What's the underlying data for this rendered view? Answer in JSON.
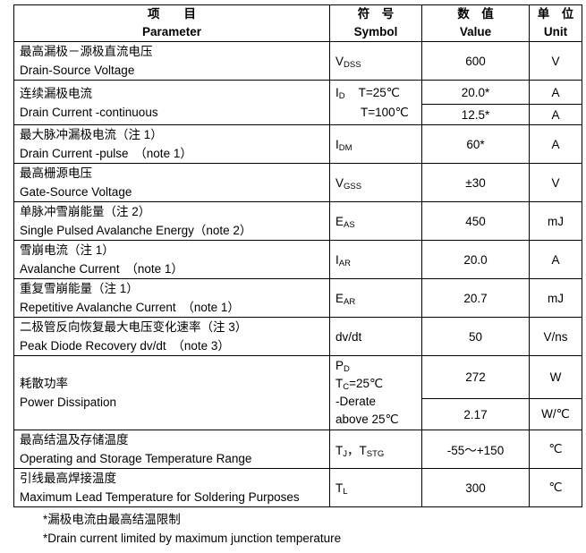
{
  "header": {
    "param_cn": "项　　目",
    "param_en": "Parameter",
    "symbol_cn": "符　号",
    "symbol_en": "Symbol",
    "value_cn": "数　值",
    "value_en": "Value",
    "unit_cn": "单　位",
    "unit_en": "Unit"
  },
  "rows": [
    {
      "cn": "最高漏极－源极直流电压",
      "en": "Drain-Source Voltage",
      "sym": "V",
      "sub": "DSS",
      "value": "600",
      "unit": "V"
    },
    {
      "cn": "连续漏极电流",
      "en": "Drain Current -continuous",
      "sym": "I",
      "sub": "D",
      "cond1": "T=25℃",
      "cond2": "T=100℃",
      "value1": "20.0*",
      "value2": "12.5*",
      "unit1": "A",
      "unit2": "A"
    },
    {
      "cn": "最大脉冲漏极电流（注 1）",
      "en": "Drain Current -pulse　（note 1）",
      "sym": "I",
      "sub": "DM",
      "value": "60*",
      "unit": "A"
    },
    {
      "cn": "最高栅源电压",
      "en": "Gate-Source Voltage",
      "sym": "V",
      "sub": "GSS",
      "value": "±30",
      "unit": "V"
    },
    {
      "cn": "单脉冲雪崩能量（注 2）",
      "en": "Single Pulsed Avalanche Energy（note 2）",
      "sym": "E",
      "sub": "AS",
      "value": "450",
      "unit": "mJ"
    },
    {
      "cn": "雪崩电流（注 1）",
      "en": "Avalanche Current　（note 1）",
      "sym": "I",
      "sub": "AR",
      "value": "20.0",
      "unit": "A"
    },
    {
      "cn": "重复雪崩能量（注 1）",
      "en": "Repetitive Avalanche Current　（note 1）",
      "sym": "E",
      "sub": "AR",
      "value": "20.7",
      "unit": "mJ"
    },
    {
      "cn": "二极管反向恢复最大电压变化速率（注 3）",
      "en": "Peak Diode Recovery dv/dt　（note 3）",
      "sym": "dv/dt",
      "value": "50",
      "unit": "V/ns"
    },
    {
      "cn": "耗散功率",
      "en": "Power Dissipation",
      "sym": "P",
      "sub": "D",
      "tc": "T",
      "tc_sub": "C",
      "tc_rest": "=25℃",
      "derate1": "-Derate",
      "derate2": "above 25℃",
      "value1": "272",
      "value2": "2.17",
      "unit1": "W",
      "unit2": "W/℃"
    },
    {
      "cn": "最高结温及存储温度",
      "en": "Operating and Storage Temperature Range",
      "sym": "T",
      "sub": "J",
      "sep": "，T",
      "sub2": "STG",
      "value": "-55～+150",
      "unit": "℃"
    },
    {
      "cn": "引线最高焊接温度",
      "en": "Maximum Lead Temperature for Soldering Purposes",
      "sym": "T",
      "sub": "L",
      "value": "300",
      "unit": "℃"
    }
  ],
  "notes": {
    "cn": "*漏极电流由最高结温限制",
    "en": "*Drain current limited by maximum junction temperature"
  }
}
